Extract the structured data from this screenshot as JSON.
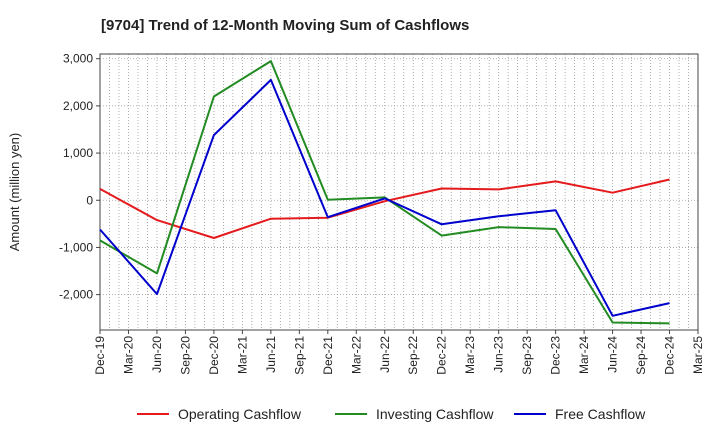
{
  "chart_data": {
    "type": "line",
    "title": "[9704]  Trend of 12-Month Moving Sum of Cashflows",
    "xlabel": "",
    "ylabel": "Amount (million yen)",
    "categories": [
      "Dec-19",
      "Mar-20",
      "Jun-20",
      "Sep-20",
      "Dec-20",
      "Mar-21",
      "Jun-21",
      "Sep-21",
      "Dec-21",
      "Mar-22",
      "Jun-22",
      "Sep-22",
      "Dec-22",
      "Mar-23",
      "Jun-23",
      "Sep-23",
      "Dec-23",
      "Mar-24",
      "Jun-24",
      "Sep-24",
      "Dec-24",
      "Mar-25"
    ],
    "ylim": [
      -2750,
      3100
    ],
    "yticks": [
      3000,
      2000,
      1000,
      0,
      -1000,
      -2000
    ],
    "ytick_labels": [
      "3,000",
      "2,000",
      "1,000",
      "0",
      "-1,000",
      "-2,000"
    ],
    "grid": true,
    "legend_position": "bottom",
    "series": [
      {
        "name": "Operating Cashflow",
        "color": "#e41a1c",
        "points": [
          {
            "x": "Dec-19",
            "y": 240
          },
          {
            "x": "Jun-20",
            "y": -420
          },
          {
            "x": "Dec-20",
            "y": -800
          },
          {
            "x": "Jun-21",
            "y": -390
          },
          {
            "x": "Dec-21",
            "y": -370
          },
          {
            "x": "Jun-22",
            "y": -20
          },
          {
            "x": "Dec-22",
            "y": 250
          },
          {
            "x": "Jun-23",
            "y": 230
          },
          {
            "x": "Dec-23",
            "y": 400
          },
          {
            "x": "Jun-24",
            "y": 160
          },
          {
            "x": "Dec-24",
            "y": 440
          }
        ]
      },
      {
        "name": "Investing Cashflow",
        "color": "#228b22",
        "points": [
          {
            "x": "Dec-19",
            "y": -850
          },
          {
            "x": "Jun-20",
            "y": -1550
          },
          {
            "x": "Dec-20",
            "y": 2200
          },
          {
            "x": "Jun-21",
            "y": 2950
          },
          {
            "x": "Dec-21",
            "y": 10
          },
          {
            "x": "Jun-22",
            "y": 60
          },
          {
            "x": "Dec-22",
            "y": -750
          },
          {
            "x": "Jun-23",
            "y": -570
          },
          {
            "x": "Dec-23",
            "y": -610
          },
          {
            "x": "Jun-24",
            "y": -2590
          },
          {
            "x": "Dec-24",
            "y": -2610
          }
        ]
      },
      {
        "name": "Free Cashflow",
        "color": "#0000cd",
        "points": [
          {
            "x": "Dec-19",
            "y": -620
          },
          {
            "x": "Jun-20",
            "y": -1990
          },
          {
            "x": "Dec-20",
            "y": 1380
          },
          {
            "x": "Jun-21",
            "y": 2550
          },
          {
            "x": "Dec-21",
            "y": -360
          },
          {
            "x": "Jun-22",
            "y": 40
          },
          {
            "x": "Dec-22",
            "y": -510
          },
          {
            "x": "Jun-23",
            "y": -340
          },
          {
            "x": "Dec-23",
            "y": -210
          },
          {
            "x": "Jun-24",
            "y": -2450
          },
          {
            "x": "Dec-24",
            "y": -2180
          }
        ]
      }
    ]
  }
}
